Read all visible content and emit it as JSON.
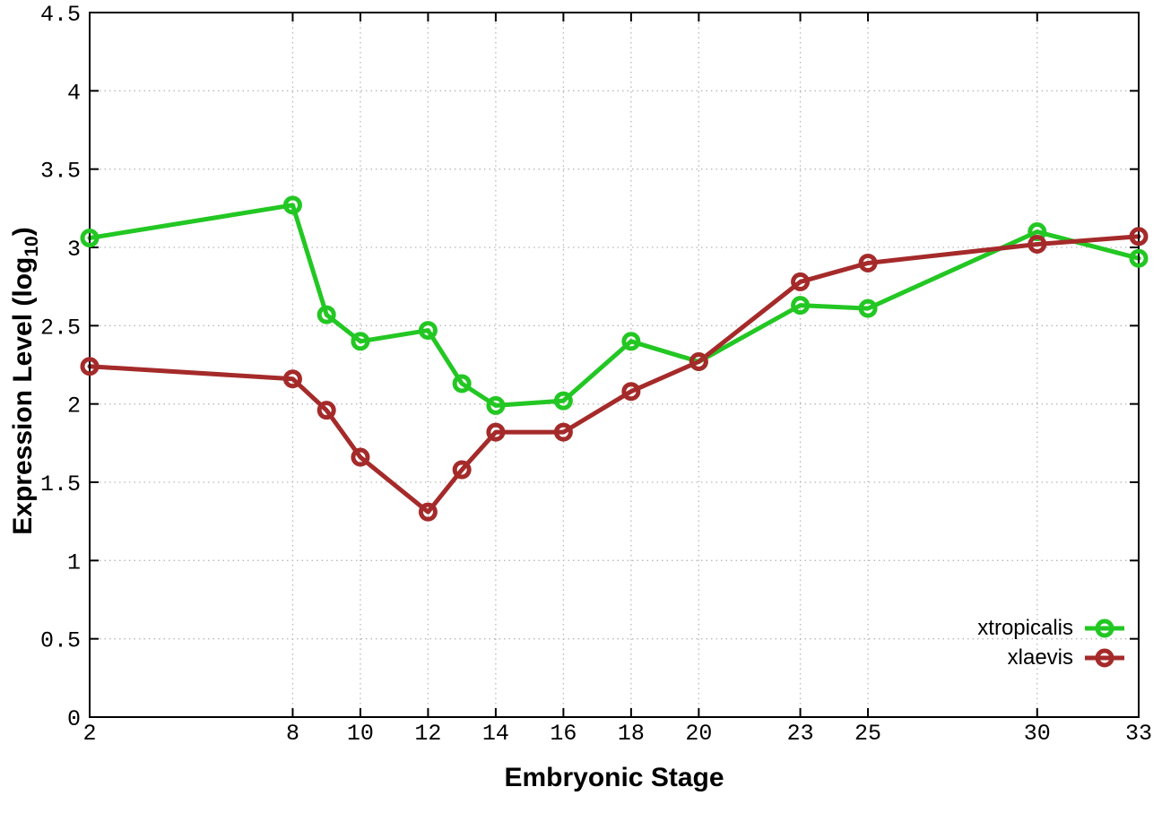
{
  "chart_data": {
    "type": "line",
    "xlabel": "Embryonic Stage",
    "ylabel_main": "Expression Level (log",
    "ylabel_sub": "10",
    "ylabel_end": ")",
    "x": [
      2,
      8,
      9,
      10,
      12,
      13,
      14,
      16,
      18,
      20,
      23,
      25,
      30,
      33
    ],
    "series": [
      {
        "name": "xtropicalis",
        "color": "#23c723",
        "values": [
          3.06,
          3.27,
          2.57,
          2.4,
          2.47,
          2.13,
          1.99,
          2.02,
          2.4,
          2.27,
          2.63,
          2.61,
          3.1,
          2.93
        ]
      },
      {
        "name": "xlaevis",
        "color": "#a52a2a",
        "values": [
          2.24,
          2.16,
          1.96,
          1.66,
          1.31,
          1.58,
          1.82,
          1.82,
          2.08,
          2.27,
          2.78,
          2.9,
          3.02,
          3.07
        ]
      }
    ],
    "x_ticks": [
      2,
      8,
      10,
      12,
      14,
      16,
      18,
      20,
      23,
      25,
      30,
      33
    ],
    "x_tick_labels": [
      "2",
      "8",
      "10",
      "12",
      "14",
      "16",
      "18",
      "20",
      "23",
      "25",
      "30",
      "33"
    ],
    "y_ticks": [
      0,
      0.5,
      1,
      1.5,
      2,
      2.5,
      3,
      3.5,
      4,
      4.5
    ],
    "y_tick_labels": [
      "0",
      "0.5",
      "1",
      "1.5",
      "2",
      "2.5",
      "3",
      "3.5",
      "4",
      "4.5"
    ],
    "xlim": [
      2,
      33
    ],
    "ylim": [
      0,
      4.5
    ],
    "grid": true,
    "legend_position": "bottom-right",
    "colors": {
      "grid": "#b8b8b8",
      "axis": "#000000",
      "background": "#ffffff"
    }
  }
}
